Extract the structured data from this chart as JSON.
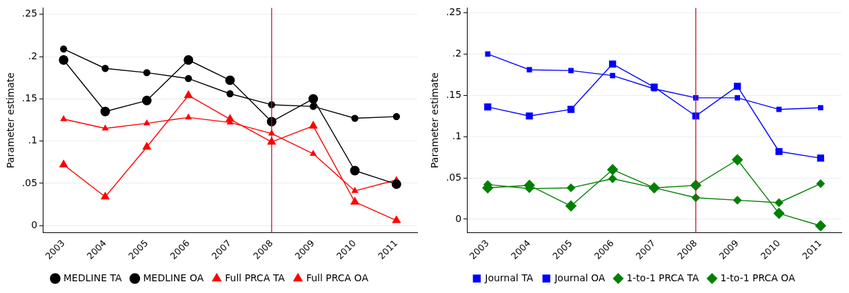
{
  "chart_data": [
    {
      "type": "line",
      "ylabel": "Parameter estimate",
      "categories": [
        "2003",
        "2004",
        "2005",
        "2006",
        "2007",
        "2008",
        "2009",
        "2010",
        "2011"
      ],
      "ylim": [
        -0.0085,
        0.2577
      ],
      "yticks": [
        {
          "value": 0,
          "label": "0"
        },
        {
          "value": 0.05,
          "label": ".05"
        },
        {
          "value": 0.1,
          "label": ".1"
        },
        {
          "value": 0.15,
          "label": ".15"
        },
        {
          "value": 0.2,
          "label": ".2"
        },
        {
          "value": 0.25,
          "label": ".25"
        }
      ],
      "grid": "y",
      "legend": "bottom",
      "series": [
        {
          "name": "MEDLINE TA",
          "color": "#000000",
          "marker": "circle",
          "values": [
            0.209,
            0.186,
            0.181,
            0.174,
            0.156,
            0.143,
            0.141,
            0.127,
            0.129
          ]
        },
        {
          "name": "MEDLINE OA",
          "color": "#000000",
          "marker": "circle",
          "values": [
            0.196,
            0.135,
            0.148,
            0.196,
            0.172,
            0.123,
            0.15,
            0.065,
            0.049
          ]
        },
        {
          "name": "Full PRCA TA",
          "color": "#ff0000",
          "marker": "triangle",
          "values": [
            0.126,
            0.115,
            0.121,
            0.128,
            0.122,
            0.109,
            0.085,
            0.041,
            0.054
          ]
        },
        {
          "name": "Full PRCA OA",
          "color": "#ff0000",
          "marker": "triangle",
          "values": [
            0.072,
            0.034,
            0.093,
            0.154,
            0.126,
            0.099,
            0.118,
            0.028,
            0.006
          ]
        }
      ],
      "ref_lines": [
        {
          "axis": "x",
          "value": "2008",
          "color": "#c8102e"
        }
      ]
    },
    {
      "type": "line",
      "ylabel": "Parameter estimate",
      "categories": [
        "2003",
        "2004",
        "2005",
        "2006",
        "2007",
        "2008",
        "2009",
        "2010",
        "2011"
      ],
      "ylim": [
        -0.0164,
        0.256
      ],
      "yticks": [
        {
          "value": 0,
          "label": "0"
        },
        {
          "value": 0.05,
          "label": ".05"
        },
        {
          "value": 0.1,
          "label": ".1"
        },
        {
          "value": 0.15,
          "label": ".15"
        },
        {
          "value": 0.2,
          "label": ".2"
        },
        {
          "value": 0.25,
          "label": ".25"
        }
      ],
      "grid": "y",
      "legend": "bottom",
      "series": [
        {
          "name": "Journal TA",
          "color": "#0000ff",
          "marker": "square",
          "values": [
            0.2,
            0.181,
            0.18,
            0.174,
            0.158,
            0.147,
            0.147,
            0.133,
            0.135
          ]
        },
        {
          "name": "Journal OA",
          "color": "#0000ff",
          "marker": "square",
          "values": [
            0.136,
            0.125,
            0.133,
            0.188,
            0.16,
            0.125,
            0.161,
            0.082,
            0.074
          ]
        },
        {
          "name": "1-to-1 PRCA TA",
          "color": "#008000",
          "marker": "diamond",
          "values": [
            0.042,
            0.037,
            0.038,
            0.049,
            0.038,
            0.026,
            0.023,
            0.02,
            0.043
          ]
        },
        {
          "name": "1-to-1 PRCA OA",
          "color": "#008000",
          "marker": "diamond",
          "values": [
            0.038,
            0.041,
            0.016,
            0.06,
            0.038,
            0.041,
            0.072,
            0.007,
            -0.008
          ]
        }
      ],
      "ref_lines": [
        {
          "axis": "x",
          "value": "2008",
          "color": "#c8102e"
        }
      ]
    }
  ]
}
